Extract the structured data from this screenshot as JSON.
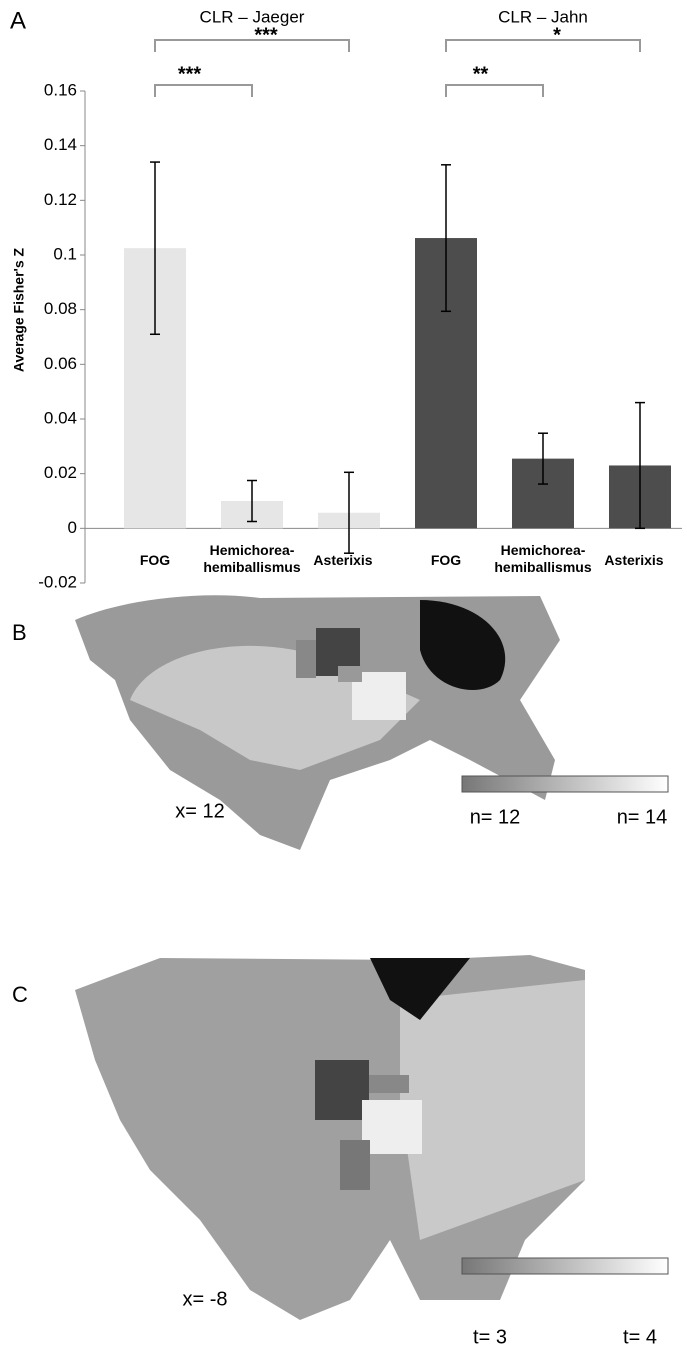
{
  "chart_data": {
    "type": "bar",
    "panel_label": "A",
    "y_label": "Average Fisher's Z",
    "categories": [
      "FOG",
      "Hemichorea-hemiballismus",
      "Asterixis"
    ],
    "series": [
      {
        "name": "CLR – Jaeger",
        "color": "#e6e6e6",
        "values": [
          0.1025,
          0.01,
          0.0057
        ],
        "errors": [
          0.0315,
          0.0075,
          0.0148
        ],
        "comparisons": [
          {
            "label": "***",
            "between": [
              0,
              1
            ]
          },
          {
            "label": "***",
            "between": [
              0,
              2
            ]
          }
        ]
      },
      {
        "name": "CLR – Jahn",
        "color": "#4d4d4d",
        "values": [
          0.1062,
          0.0255,
          0.023
        ],
        "errors": [
          0.0268,
          0.0093,
          0.023
        ],
        "comparisons": [
          {
            "label": "**",
            "between": [
              0,
              1
            ]
          },
          {
            "label": "*",
            "between": [
              0,
              2
            ]
          }
        ]
      }
    ],
    "ylim": [
      -0.02,
      0.16
    ],
    "yticks": [
      -0.02,
      0,
      0.02,
      0.04,
      0.06,
      0.08,
      0.1,
      0.12,
      0.14,
      0.16
    ]
  },
  "panels": [
    {
      "label": "B",
      "coordinate": "x= 12",
      "scale_min": "n= 12",
      "scale_max": "n= 14"
    },
    {
      "label": "C",
      "coordinate": "x= -8",
      "scale_min": "t= 3",
      "scale_max": "t= 4"
    }
  ]
}
